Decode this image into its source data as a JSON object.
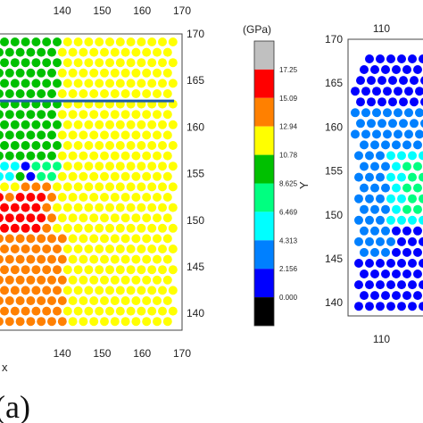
{
  "chart_data": [
    {
      "type": "scatter",
      "panel": "a",
      "xlabel": "x",
      "ylabel": "",
      "xlim": [
        124,
        170
      ],
      "ylim": [
        138.2,
        170
      ],
      "x_ticks_top": [
        "140",
        "150",
        "160",
        "170"
      ],
      "x_ticks_bottom": [
        "140",
        "150",
        "160",
        "170"
      ],
      "y_ticks_right": [
        "140",
        "145",
        "150",
        "155",
        "160",
        "165",
        "170"
      ],
      "x_tick_values": [
        140,
        150,
        160,
        170
      ],
      "y_tick_values": [
        140,
        145,
        150,
        155,
        160,
        165,
        170
      ],
      "line": {
        "x": [
          124,
          168
        ],
        "y": [
          162.8,
          162.8
        ],
        "color": "#1f5fa8"
      },
      "regions_note_free": true,
      "grid": false
    },
    {
      "type": "scatter",
      "panel": "b",
      "xlabel": "",
      "ylabel": "Y",
      "xlim": [
        105,
        117
      ],
      "ylim": [
        138.5,
        170
      ],
      "x_ticks_top": [
        "110"
      ],
      "x_ticks_bottom": [
        "110"
      ],
      "y_ticks_left": [
        "140",
        "145",
        "150",
        "155",
        "160",
        "165",
        "170"
      ],
      "x_tick_values": [
        110
      ],
      "y_tick_values": [
        140,
        145,
        150,
        155,
        160,
        165,
        170
      ],
      "grid": false
    }
  ],
  "colorbar": {
    "title": "(GPa)",
    "ticks": [
      "17.25",
      "15.09",
      "12.94",
      "10.78",
      "8.625",
      "6.469",
      "4.313",
      "2.156",
      "0.000"
    ],
    "colors": [
      "#c0c0c0",
      "#ff0000",
      "#ff8000",
      "#ffff00",
      "#00c000",
      "#00ff80",
      "#00ffff",
      "#0080ff",
      "#0000ff",
      "#000000"
    ]
  },
  "panel_label": "(a)"
}
